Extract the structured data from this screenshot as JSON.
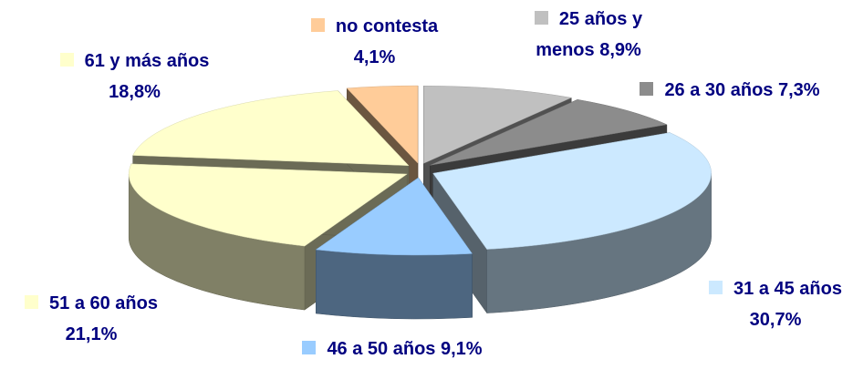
{
  "chart_data": {
    "type": "pie",
    "categories": [
      "25 años y menos",
      "26 a 30 años",
      "31 a 45 años",
      "46 a 50 años",
      "51 a 60 años",
      "61 y más años",
      "no contesta"
    ],
    "values": [
      8.9,
      7.3,
      30.7,
      9.1,
      21.1,
      18.8,
      4.1
    ],
    "value_labels": [
      "8,9%",
      "7,3%",
      "30,7%",
      "9,1%",
      "21,1%",
      "18,8%",
      "4,1%"
    ],
    "colors": [
      "#c0c0c0",
      "#8c8c8c",
      "#cce9ff",
      "#99ccff",
      "#ffffcc",
      "#ffffcc",
      "#ffcc99"
    ]
  }
}
